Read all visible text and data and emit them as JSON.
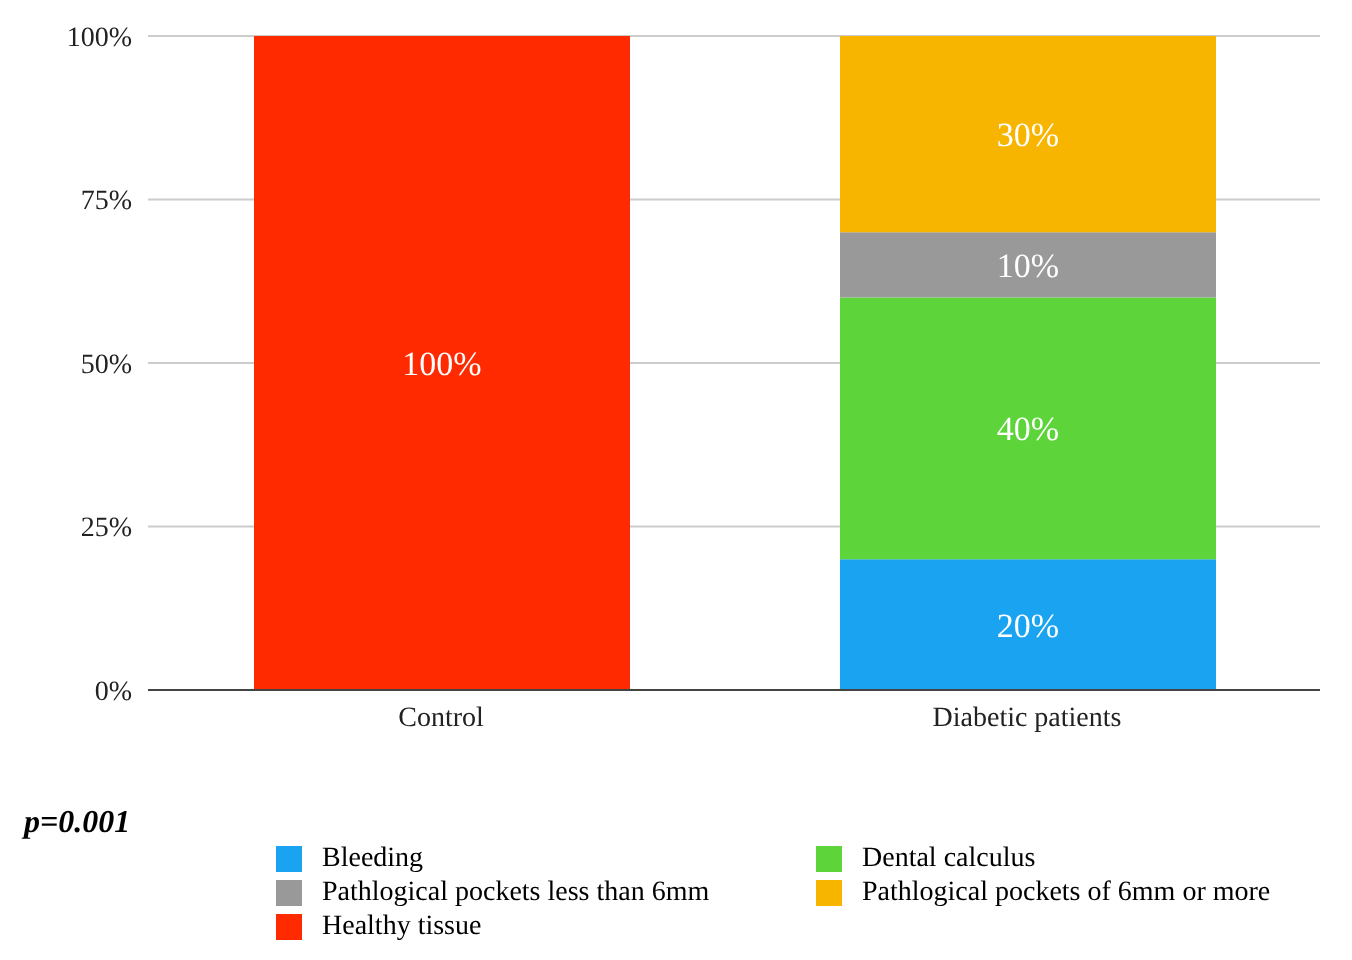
{
  "chart_data": {
    "type": "bar",
    "stacked": true,
    "categories": [
      "Control",
      "Diabetic patients"
    ],
    "series": [
      {
        "name": "Bleeding",
        "color": "#1aa3f0",
        "values": [
          null,
          20
        ],
        "value_labels": [
          null,
          "20%"
        ]
      },
      {
        "name": "Dental calculus",
        "color": "#5dd53a",
        "values": [
          null,
          40
        ],
        "value_labels": [
          null,
          "40%"
        ]
      },
      {
        "name": "Pathlogical pockets less than 6mm",
        "color": "#999999",
        "values": [
          null,
          10
        ],
        "value_labels": [
          null,
          "10%"
        ]
      },
      {
        "name": "Pathlogical pockets of 6mm or more",
        "color": "#f7b500",
        "values": [
          null,
          30
        ],
        "value_labels": [
          null,
          "30%"
        ]
      },
      {
        "name": "Healthy tissue",
        "color": "#ff2a00",
        "values": [
          100,
          null
        ],
        "value_labels": [
          "100%",
          null
        ]
      }
    ],
    "ylim": [
      0,
      100
    ],
    "yticks": [
      {
        "value": 0,
        "label": "0%"
      },
      {
        "value": 25,
        "label": "25%"
      },
      {
        "value": 50,
        "label": "50%"
      },
      {
        "value": 75,
        "label": "75%"
      },
      {
        "value": 100,
        "label": "100%"
      }
    ],
    "grid": "y",
    "legend": "bottom",
    "annotations": [
      "p=0.001"
    ]
  }
}
